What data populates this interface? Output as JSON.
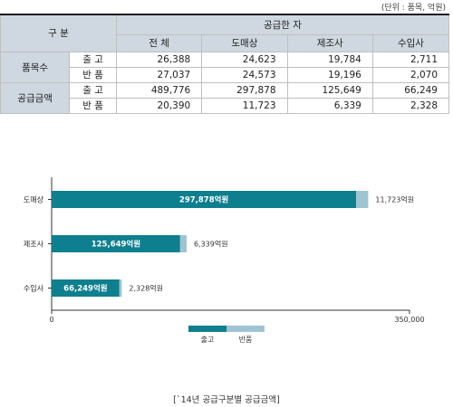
{
  "unit_note": "(단위 : 품목, 억원)",
  "table": {
    "corner": "구 분",
    "supplier_header": "공급한 자",
    "columns": [
      "전 체",
      "도매상",
      "제조사",
      "수입사"
    ],
    "groups": [
      {
        "name": "품목수",
        "rows": [
          {
            "kind": "출 고",
            "values": [
              "26,388",
              "24,623",
              "19,784",
              "2,711"
            ]
          },
          {
            "kind": "반 품",
            "values": [
              "27,037",
              "24,573",
              "19,196",
              "2,070"
            ]
          }
        ]
      },
      {
        "name": "공급금액",
        "rows": [
          {
            "kind": "출 고",
            "values": [
              "489,776",
              "297,878",
              "125,649",
              "66,249"
            ]
          },
          {
            "kind": "반 품",
            "values": [
              "20,390",
              "11,723",
              "6,339",
              "2,328"
            ]
          }
        ]
      }
    ]
  },
  "chart_data": {
    "type": "bar",
    "orientation": "horizontal",
    "stacked": true,
    "categories": [
      "도매상",
      "제조사",
      "수입사"
    ],
    "series": [
      {
        "name": "출고",
        "color": "#0e7f8e",
        "values": [
          297878,
          125649,
          66249
        ],
        "labels": [
          "297,878억원",
          "125,649억원",
          "66,249억원"
        ]
      },
      {
        "name": "반품",
        "color": "#9fc3d3",
        "values": [
          11723,
          6339,
          2328
        ],
        "labels": [
          "11,723억원",
          "6,339억원",
          "2,328억원"
        ]
      }
    ],
    "xlim": [
      0,
      350000
    ],
    "xtick_labels": [
      "0",
      "350,000"
    ],
    "legend": "bottom-center",
    "grid": false
  },
  "caption": "[`14년 공급구분별 공급금액]"
}
